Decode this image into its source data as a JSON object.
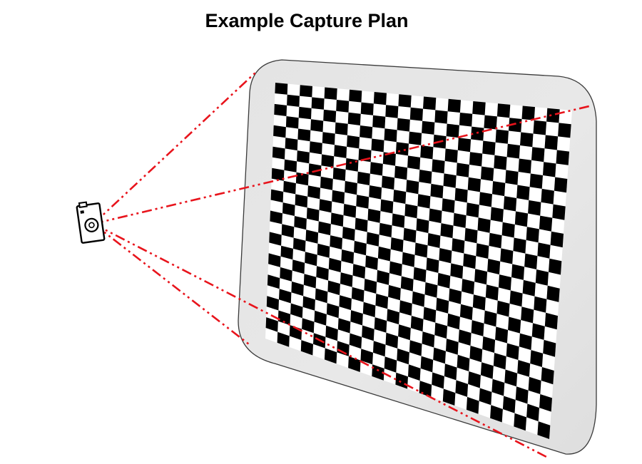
{
  "title": "Example Capture Plan",
  "checkerboard": {
    "columns": 24,
    "rows": 24
  },
  "colors": {
    "line": "#e8141c",
    "panel_fill": "#e6e6e6",
    "panel_stroke": "#3a3a3a",
    "square_dark": "#000000",
    "square_light": "#ffffff"
  },
  "icons": {
    "camera": "camera-icon"
  }
}
